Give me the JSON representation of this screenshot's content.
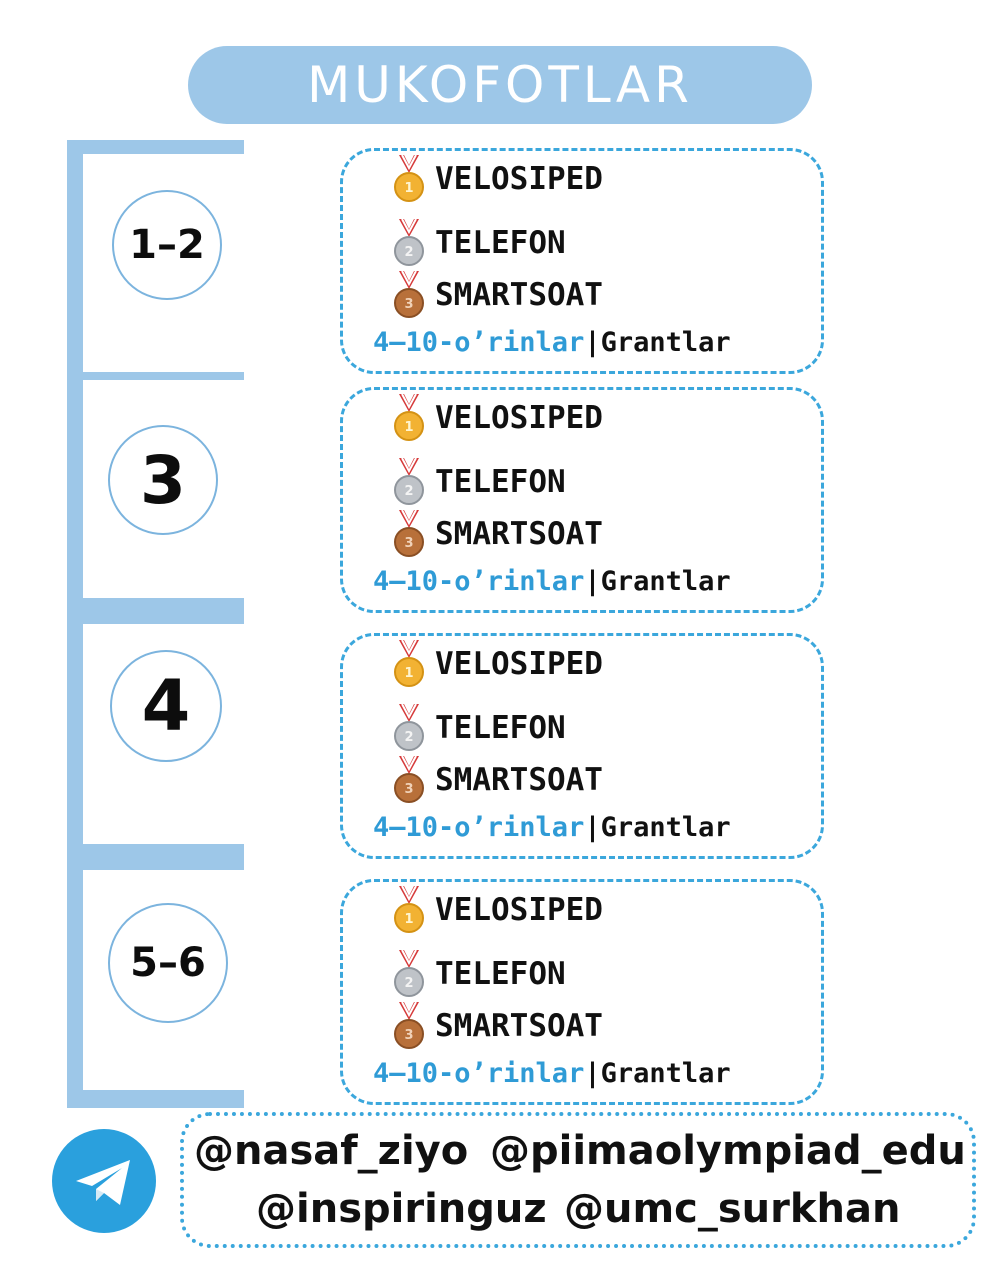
{
  "title": "MUKOFOTLAR",
  "groups": [
    {
      "grade": "1–2",
      "prizes": [
        {
          "medal": "gold-medal-icon",
          "label": "VELOSIPED"
        },
        {
          "medal": "silver-medal-icon",
          "label": "TELEFON"
        },
        {
          "medal": "bronze-medal-icon",
          "label": "SMARTSOAT"
        }
      ],
      "footer": {
        "range": "4–10-o’rinlar",
        "separator": "|",
        "grants": "Grantlar"
      }
    },
    {
      "grade": "3",
      "prizes": [
        {
          "medal": "gold-medal-icon",
          "label": "VELOSIPED"
        },
        {
          "medal": "silver-medal-icon",
          "label": "TELEFON"
        },
        {
          "medal": "bronze-medal-icon",
          "label": "SMARTSOAT"
        }
      ],
      "footer": {
        "range": "4–10-o’rinlar",
        "separator": "|",
        "grants": "Grantlar"
      }
    },
    {
      "grade": "4",
      "prizes": [
        {
          "medal": "gold-medal-icon",
          "label": "VELOSIPED"
        },
        {
          "medal": "silver-medal-icon",
          "label": "TELEFON"
        },
        {
          "medal": "bronze-medal-icon",
          "label": "SMARTSOAT"
        }
      ],
      "footer": {
        "range": "4–10-o’rinlar",
        "separator": "|",
        "grants": "Grantlar"
      }
    },
    {
      "grade": "5–6",
      "prizes": [
        {
          "medal": "gold-medal-icon",
          "label": "VELOSIPED"
        },
        {
          "medal": "silver-medal-icon",
          "label": "TELEFON"
        },
        {
          "medal": "bronze-medal-icon",
          "label": "SMARTSOAT"
        }
      ],
      "footer": {
        "range": "4–10-o’rinlar",
        "separator": "|",
        "grants": "Grantlar"
      }
    }
  ],
  "social": {
    "icon": "telegram-icon",
    "handles": [
      "@nasaf_ziyo",
      "@piimaolympiad_edu",
      "@inspiringuz",
      "@umc_surkhan"
    ]
  },
  "colors": {
    "accent_light_blue": "#9dc7e8",
    "accent_blue": "#3ba7dc",
    "telegram_blue": "#2aa0dd",
    "gold": "#f2b233",
    "silver": "#bfc3c8",
    "bronze": "#b8703a",
    "ribbon_red": "#d63a3a"
  }
}
